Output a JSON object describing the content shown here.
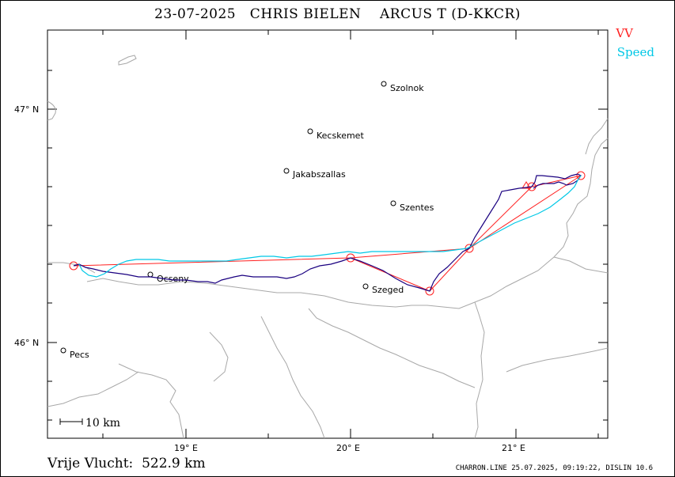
{
  "title": "23-07-2025   CHRIS BIELEN    ARCUS T (D-KKCR)",
  "legend": {
    "vv": "VV",
    "speed": "Speed",
    "vv_color": "#ff2020",
    "speed_color": "#00c8e6",
    "track_color": "#1a0080"
  },
  "axes": {
    "lat_labels": [
      "47° N",
      "46° N"
    ],
    "lon_labels": [
      "19° E",
      "20° E",
      "21° E"
    ]
  },
  "cities": [
    {
      "name": "Szolnok"
    },
    {
      "name": "Kecskemet"
    },
    {
      "name": "Jakabszallas"
    },
    {
      "name": "Szentes"
    },
    {
      "name": "Ocseny"
    },
    {
      "name": "Szeged"
    },
    {
      "name": "Pecs"
    }
  ],
  "scale": {
    "label": "10 km"
  },
  "distance": "Vrije Vlucht:  522.9 km",
  "footer": "CHARRON.LINE 25.07.2025, 09:19:22, DISLIN 10.6"
}
